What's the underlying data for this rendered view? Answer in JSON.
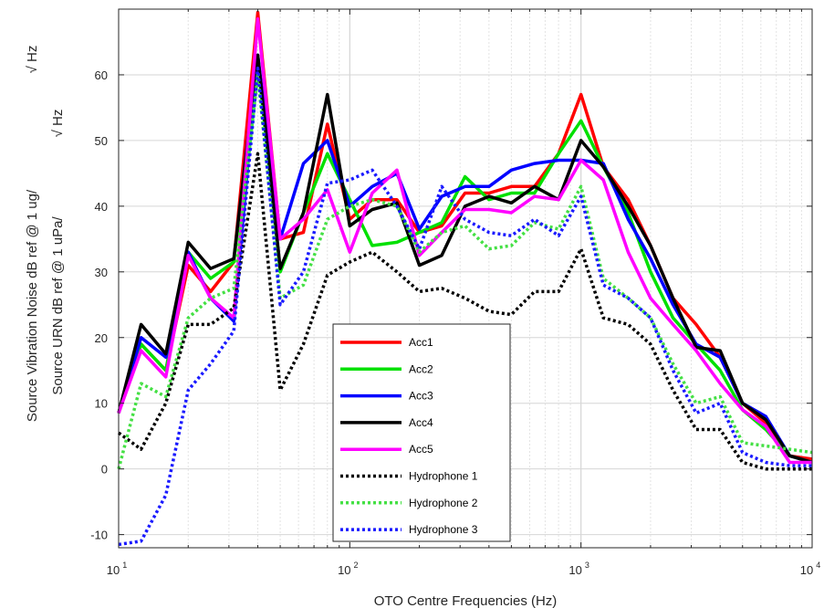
{
  "chart_data": {
    "type": "line",
    "xscale": "log",
    "xlim": [
      10,
      10000
    ],
    "ylim": [
      -12,
      70
    ],
    "xlabel": "OTO Centre Frequencies (Hz)",
    "ylabel_lines": [
      "Source Vibration Noise dB ref @ 1 ug/",
      "Source URN dB ref @ 1 uPa/"
    ],
    "ylabel_sqrt_hz": [
      "√ Hz",
      "√ Hz"
    ],
    "x_ticks": [
      {
        "base": "10",
        "exp": "1"
      },
      {
        "base": "10",
        "exp": "2"
      },
      {
        "base": "10",
        "exp": "3"
      },
      {
        "base": "10",
        "exp": "4"
      }
    ],
    "y_ticks": [
      "-10",
      "0",
      "10",
      "20",
      "30",
      "40",
      "50",
      "60"
    ],
    "grid": true,
    "legend_position": "bottom-center",
    "x": [
      10,
      12.5,
      16,
      20,
      25,
      31.5,
      40,
      50,
      63,
      80,
      100,
      125,
      160,
      200,
      250,
      315,
      400,
      500,
      630,
      800,
      1000,
      1250,
      1600,
      2000,
      2500,
      3150,
      4000,
      5000,
      6300,
      8000,
      10000
    ],
    "series": [
      {
        "name": "Acc1",
        "color": "#ff0000",
        "style": "solid",
        "values": [
          8.5,
          19,
          15,
          31,
          27,
          31.5,
          69.5,
          35,
          36,
          52.5,
          38,
          41,
          41,
          36,
          37,
          42,
          42,
          43,
          43,
          48,
          57,
          46,
          41,
          34,
          26,
          22,
          17,
          10,
          7,
          2,
          1.5
        ]
      },
      {
        "name": "Acc2",
        "color": "#00e000",
        "style": "solid",
        "values": [
          8.5,
          19,
          15,
          33,
          29,
          31.5,
          62,
          30,
          39,
          48,
          41,
          34,
          34.5,
          36,
          37.5,
          44.5,
          41,
          42,
          42,
          48,
          53,
          46,
          39,
          30,
          23,
          19,
          15,
          9,
          6,
          2,
          1
        ]
      },
      {
        "name": "Acc3",
        "color": "#0000ff",
        "style": "solid",
        "values": [
          8.5,
          20,
          17,
          33,
          26,
          22.5,
          63,
          35,
          46.5,
          50,
          40,
          43,
          45,
          36.5,
          41.5,
          43,
          43,
          45.5,
          46.5,
          47,
          47,
          46.5,
          38,
          32,
          25,
          19,
          17,
          10,
          8,
          2,
          1
        ]
      },
      {
        "name": "Acc4",
        "color": "#000000",
        "style": "solid",
        "values": [
          8.5,
          22,
          17.5,
          34.5,
          30.5,
          32,
          63,
          30.5,
          39,
          57,
          37,
          39.5,
          40.5,
          31,
          32.5,
          40,
          41.5,
          40.5,
          43,
          41,
          50,
          46,
          40,
          34,
          26,
          18.5,
          18,
          10,
          7.5,
          2,
          1
        ]
      },
      {
        "name": "Acc5",
        "color": "#ff00ff",
        "style": "solid",
        "values": [
          8.5,
          18,
          14,
          32.5,
          26,
          23,
          68.5,
          35,
          38,
          42.5,
          33,
          42,
          45.5,
          32.5,
          36,
          39.5,
          39.5,
          39,
          41.5,
          41,
          47,
          44,
          33,
          26,
          22,
          18,
          13,
          9,
          6.5,
          1,
          1
        ]
      },
      {
        "name": "Hydrophone 1",
        "color": "#000000",
        "style": "dotted",
        "values": [
          5.5,
          3,
          10,
          22,
          22,
          24.5,
          48,
          12,
          19,
          29.5,
          31.5,
          33,
          30,
          27,
          27.5,
          26,
          24,
          23.5,
          27,
          27,
          33.5,
          23,
          22,
          19,
          12,
          6,
          6,
          1,
          0,
          0,
          0
        ]
      },
      {
        "name": "Hydrophone 2",
        "color": "#44e044",
        "style": "dotted",
        "values": [
          0,
          13,
          11,
          23,
          26,
          27.5,
          60,
          26,
          28,
          38,
          40,
          41,
          40,
          33,
          36,
          37,
          33.5,
          34,
          37.5,
          36.5,
          43,
          29,
          26,
          23,
          16,
          10,
          11,
          4,
          3.5,
          3,
          2.5
        ]
      },
      {
        "name": "Hydrophone 3",
        "color": "#1a1aff",
        "style": "dotted",
        "values": [
          -11.5,
          -11,
          -4,
          12,
          16,
          21,
          61,
          25,
          30,
          43.5,
          44,
          45.5,
          40,
          33.5,
          43,
          38,
          36,
          35.5,
          38,
          35.5,
          41.5,
          28,
          26,
          23,
          15,
          8.5,
          10,
          2.5,
          1,
          0.5,
          0.5
        ]
      }
    ]
  }
}
